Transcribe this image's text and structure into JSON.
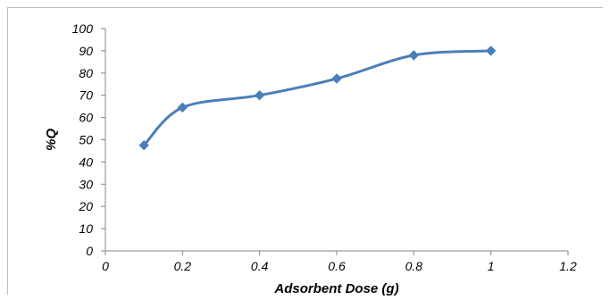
{
  "chart_data": {
    "type": "line",
    "title": "",
    "xlabel": "Adsorbent Dose (g)",
    "ylabel": "%Q",
    "xlim": [
      0,
      1.2
    ],
    "ylim": [
      0,
      100
    ],
    "x_ticks": [
      "0",
      "0.2",
      "0.4",
      "0.6",
      "0.8",
      "1",
      "1.2"
    ],
    "y_ticks": [
      "0",
      "10",
      "20",
      "30",
      "40",
      "50",
      "60",
      "70",
      "80",
      "90",
      "100"
    ],
    "grid": false,
    "legend": "none",
    "smoothed": true,
    "marker": "diamond",
    "color": "#4a7ebb",
    "series": [
      {
        "x": [
          0.1,
          0.2,
          0.4,
          0.6,
          0.8,
          1.0
        ],
        "y": [
          47.5,
          64.5,
          70,
          77.5,
          88,
          90
        ]
      }
    ]
  }
}
